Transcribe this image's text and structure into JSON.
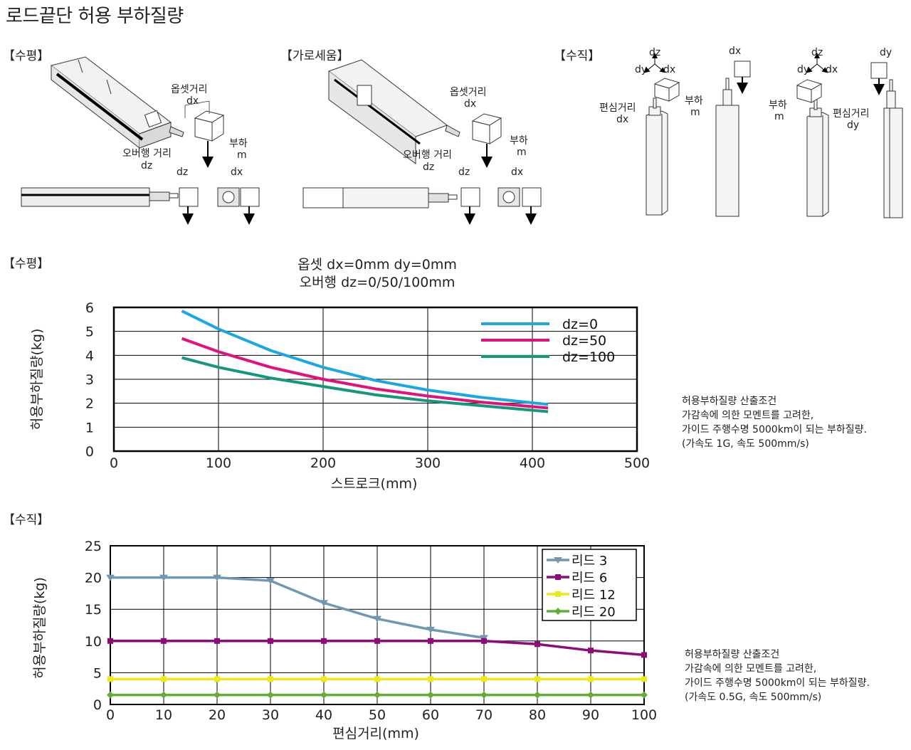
{
  "page": {
    "title": "로드끝단 허용 부하질량",
    "labels": {
      "horizontal": "【수평】",
      "sideways": "【가로세움】",
      "vertical": "【수직】",
      "chart1_section": "【수평】",
      "chart2_section": "【수직】"
    }
  },
  "diagrams": {
    "horizontal": {
      "offset_label": "옵셋거리",
      "offset_dim": "dx",
      "overhang_label": "오버행 거리",
      "overhang_dim": "dz",
      "load_label": "부하",
      "load_dim": "m",
      "side_dim": "dz",
      "front_dim": "dx"
    },
    "sideways": {
      "offset_label": "옵셋거리",
      "offset_dim": "dx",
      "overhang_label": "오버행 거리",
      "overhang_dim": "dz",
      "load_label": "부하",
      "load_dim": "m",
      "side_dim": "dz",
      "front_dim": "dx"
    },
    "vertical": {
      "axis_dz": "dz",
      "axis_dy": "dy",
      "axis_dx": "dx",
      "ecc_label": "편심거리",
      "ecc_dim_x": "dx",
      "ecc_dim_y": "dy",
      "load_label": "부하",
      "load_dim": "m",
      "top_dx": "dx",
      "top_dy": "dy"
    }
  },
  "chart_data": [
    {
      "type": "line",
      "title": "옵셋 dx=0mm dy=0mm",
      "subtitle": "오버행 dz=0/50/100mm",
      "xlabel": "스트로크(mm)",
      "ylabel": "허용부하질량(kg)",
      "xlim": [
        0,
        500
      ],
      "ylim": [
        0,
        6
      ],
      "xticks": [
        0,
        100,
        200,
        300,
        400,
        500
      ],
      "yticks": [
        0,
        1,
        2,
        3,
        4,
        5,
        6
      ],
      "grid": true,
      "legend": "top-right",
      "series": [
        {
          "name": "dz=0",
          "color": "#1aa7e3",
          "x": [
            65,
            100,
            150,
            200,
            250,
            300,
            350,
            415
          ],
          "y": [
            5.85,
            5.1,
            4.2,
            3.5,
            2.95,
            2.55,
            2.25,
            1.95
          ]
        },
        {
          "name": "dz=50",
          "color": "#e2127d",
          "x": [
            65,
            100,
            150,
            200,
            250,
            300,
            350,
            415
          ],
          "y": [
            4.7,
            4.15,
            3.5,
            3.0,
            2.6,
            2.3,
            2.05,
            1.8
          ]
        },
        {
          "name": "dz=100",
          "color": "#14987a",
          "x": [
            65,
            100,
            150,
            200,
            250,
            300,
            350,
            415
          ],
          "y": [
            3.9,
            3.5,
            3.05,
            2.7,
            2.35,
            2.1,
            1.9,
            1.65
          ]
        }
      ],
      "notes": [
        "허용부하질량 산출조건",
        "가감속에 의한 모멘트를 고려한,",
        "가이드 주행수명 5000km이 되는 부하질량.",
        "(가속도 1G, 속도 500mm/s)"
      ]
    },
    {
      "type": "line",
      "xlabel": "편심거리(mm)",
      "ylabel": "허용부하질량(kg)",
      "xlim": [
        0,
        100
      ],
      "ylim": [
        0,
        25
      ],
      "xticks": [
        0,
        10,
        20,
        30,
        40,
        50,
        60,
        70,
        80,
        90,
        100
      ],
      "yticks": [
        0,
        5,
        10,
        15,
        20,
        25
      ],
      "grid": true,
      "legend": "top-right",
      "x": [
        0,
        10,
        20,
        30,
        40,
        50,
        60,
        70,
        80,
        90,
        100
      ],
      "series": [
        {
          "name": "리드 3",
          "color": "#6f98b3",
          "marker": "triangle-down",
          "values": [
            20,
            20,
            20,
            19.5,
            16,
            13.5,
            11.8,
            10.5,
            null,
            null,
            null
          ]
        },
        {
          "name": "리드 6",
          "color": "#8e0a7a",
          "marker": "square",
          "values": [
            10,
            10,
            10,
            10,
            10,
            10,
            10,
            10,
            9.5,
            8.5,
            7.8
          ]
        },
        {
          "name": "리드 12",
          "color": "#eeea1a",
          "marker": "square",
          "values": [
            4,
            4,
            4,
            4,
            4,
            4,
            4,
            4,
            4,
            4,
            4
          ]
        },
        {
          "name": "리드 20",
          "color": "#62ad34",
          "marker": "diamond",
          "values": [
            1.5,
            1.5,
            1.5,
            1.5,
            1.5,
            1.5,
            1.5,
            1.5,
            1.5,
            1.5,
            1.5
          ]
        }
      ],
      "notes": [
        "허용부하질량 산출조건",
        "가감속에 의한 모멘트를 고려한,",
        "가이드 주행수명 5000km이 되는 부하질량.",
        "(가속도 0.5G, 속도 500mm/s)"
      ]
    }
  ]
}
